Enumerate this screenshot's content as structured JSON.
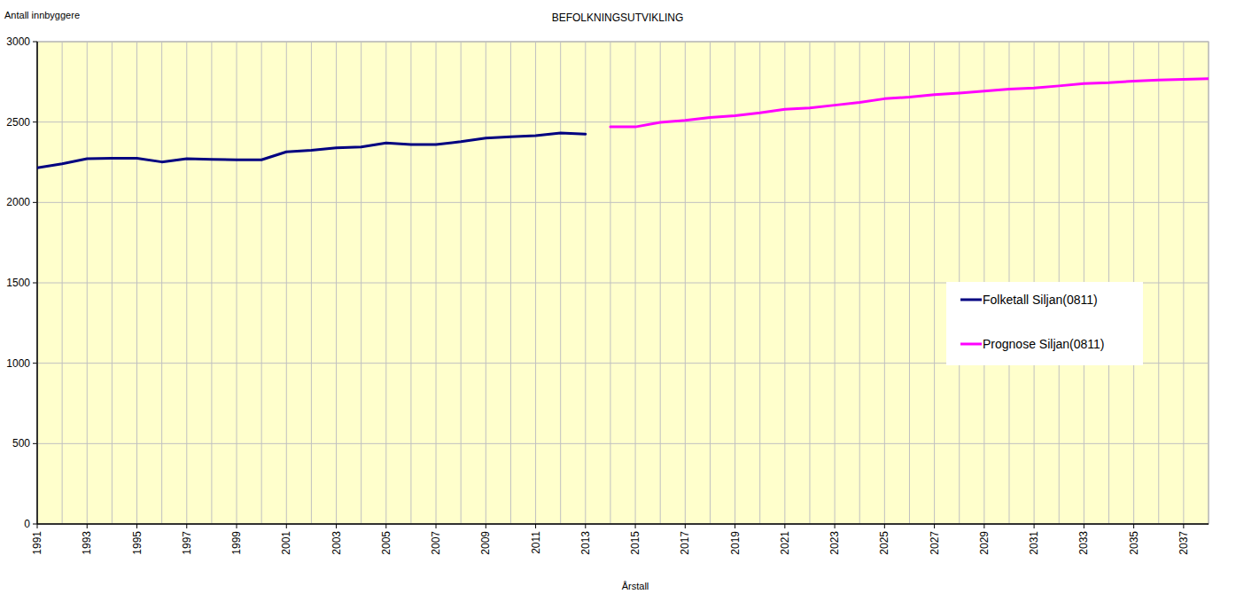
{
  "chart_data": {
    "type": "line",
    "title": "BEFOLKNINGSUTVIKLING",
    "y_label": "Antall innbyggere",
    "x_label": "Årstall",
    "x": [
      1991,
      1992,
      1993,
      1994,
      1995,
      1996,
      1997,
      1998,
      1999,
      2000,
      2001,
      2002,
      2003,
      2004,
      2005,
      2006,
      2007,
      2008,
      2009,
      2010,
      2011,
      2012,
      2013,
      2014,
      2015,
      2016,
      2017,
      2018,
      2019,
      2020,
      2021,
      2022,
      2023,
      2024,
      2025,
      2026,
      2027,
      2028,
      2029,
      2030,
      2031,
      2032,
      2033,
      2034,
      2035,
      2036,
      2037,
      2038
    ],
    "series": [
      {
        "name": "Folketall Siljan(0811)",
        "color": "#000080",
        "values": [
          2215,
          2240,
          2272,
          2275,
          2275,
          2252,
          2272,
          2268,
          2265,
          2265,
          2315,
          2325,
          2340,
          2345,
          2370,
          2360,
          2360,
          2378,
          2400,
          2408,
          2415,
          2432,
          2425,
          null,
          null,
          null,
          null,
          null,
          null,
          null,
          null,
          null,
          null,
          null,
          null,
          null,
          null,
          null,
          null,
          null,
          null,
          null,
          null,
          null,
          null,
          null,
          null,
          null
        ]
      },
      {
        "name": "Prognose Siljan(0811)",
        "color": "#ff00ff",
        "values": [
          null,
          null,
          null,
          null,
          null,
          null,
          null,
          null,
          null,
          null,
          null,
          null,
          null,
          null,
          null,
          null,
          null,
          null,
          null,
          null,
          null,
          null,
          null,
          2470,
          2470,
          2498,
          2510,
          2528,
          2540,
          2558,
          2580,
          2588,
          2605,
          2622,
          2645,
          2655,
          2670,
          2680,
          2693,
          2705,
          2712,
          2725,
          2740,
          2745,
          2755,
          2762,
          2765,
          2770
        ]
      }
    ],
    "xlim": [
      1991,
      2038
    ],
    "xticks": [
      1991,
      1993,
      1995,
      1997,
      1999,
      2001,
      2003,
      2005,
      2007,
      2009,
      2011,
      2013,
      2015,
      2017,
      2019,
      2021,
      2023,
      2025,
      2027,
      2029,
      2031,
      2033,
      2035,
      2037
    ],
    "ylim": [
      0,
      3000
    ],
    "yticks": [
      0,
      500,
      1000,
      1500,
      2000,
      2500,
      3000
    ],
    "grid": true,
    "legend": "right"
  }
}
